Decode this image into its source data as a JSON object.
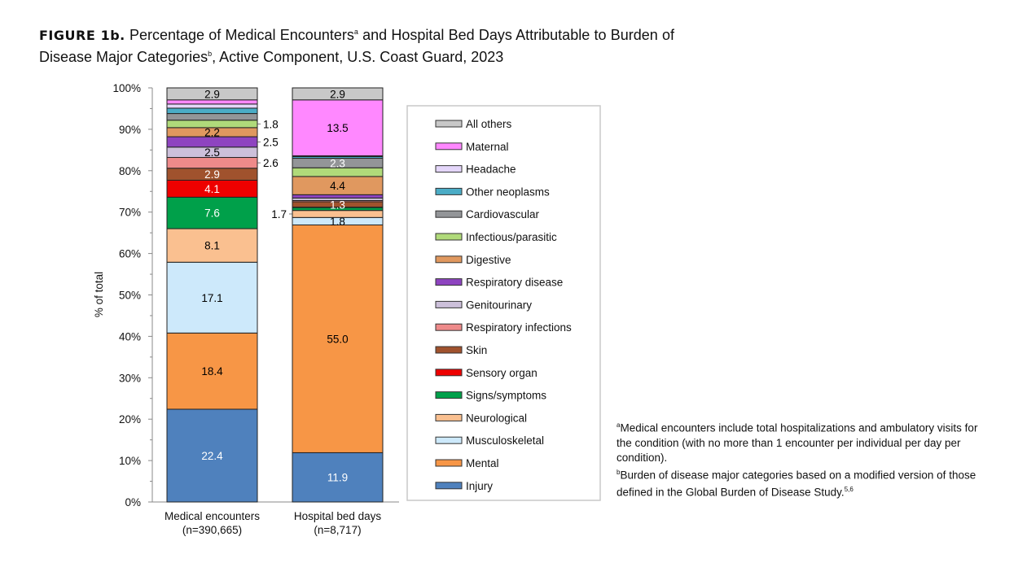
{
  "title": {
    "figure_label": "FIGURE 1b.",
    "text_part1": "Percentage of Medical Encounters",
    "sup_a": "a",
    "text_part2": " and Hospital Bed Days Attributable to Burden of Disease Major Categories",
    "sup_b": "b",
    "text_part3": ", Active Component, U.S. Coast Guard, 2023"
  },
  "chart_data": {
    "type": "bar",
    "stacked": true,
    "percent_stacked": true,
    "ylabel": "% of total",
    "ylim": [
      0,
      100
    ],
    "yticks": [
      "0%",
      "10%",
      "20%",
      "30%",
      "40%",
      "50%",
      "60%",
      "70%",
      "80%",
      "90%",
      "100%"
    ],
    "categories": [
      "Medical encounters\n(n=390,665)",
      "Hospital bed days\n(n=8,717)"
    ],
    "category_lines": [
      [
        "Medical encounters",
        "(n=390,665)"
      ],
      [
        "Hospital bed days",
        "(n=8,717)"
      ]
    ],
    "legend_position": "right",
    "series": [
      {
        "name": "Injury",
        "color": "#4F81BD",
        "label_color": "#ffffff",
        "values": [
          22.4,
          11.9
        ],
        "labels": [
          "22.4",
          "11.9"
        ]
      },
      {
        "name": "Mental",
        "color": "#F79646",
        "label_color": "#000000",
        "values": [
          18.4,
          55.0
        ],
        "labels": [
          "18.4",
          "55.0"
        ]
      },
      {
        "name": "Musculoskeletal",
        "color": "#CDE9FB",
        "label_color": "#000000",
        "values": [
          17.1,
          1.8
        ],
        "labels": [
          "17.1",
          "1.8"
        ]
      },
      {
        "name": "Neurological",
        "color": "#FAC090",
        "label_color": "#000000",
        "values": [
          8.1,
          1.7
        ],
        "labels": [
          "8.1",
          "1.7"
        ]
      },
      {
        "name": "Signs/symptoms",
        "color": "#00A04A",
        "label_color": "#ffffff",
        "values": [
          7.6,
          0.7
        ],
        "labels": [
          "7.6",
          null
        ]
      },
      {
        "name": "Sensory organ",
        "color": "#EE0000",
        "label_color": "#ffffff",
        "values": [
          4.1,
          0.1
        ],
        "labels": [
          "4.1",
          null
        ]
      },
      {
        "name": "Skin",
        "color": "#A0522D",
        "label_color": "#ffffff",
        "values": [
          2.9,
          1.3
        ],
        "labels": [
          "2.9",
          "1.3"
        ]
      },
      {
        "name": "Respiratory infections",
        "color": "#EE8A8A",
        "label_color": "#000000",
        "values": [
          2.6,
          0.3
        ],
        "labels": [
          "2.6",
          null
        ]
      },
      {
        "name": "Genitourinary",
        "color": "#CCC0DA",
        "label_color": "#000000",
        "values": [
          2.5,
          0.6
        ],
        "labels": [
          "2.5",
          null
        ]
      },
      {
        "name": "Respiratory disease",
        "color": "#8E44C0",
        "label_color": "#ffffff",
        "values": [
          2.5,
          0.8
        ],
        "labels": [
          "2.5",
          null
        ]
      },
      {
        "name": "Digestive",
        "color": "#E0985F",
        "label_color": "#000000",
        "values": [
          2.2,
          4.4
        ],
        "labels": [
          "2.2",
          "4.4"
        ]
      },
      {
        "name": "Infectious/parasitic",
        "color": "#B0DA7A",
        "label_color": "#000000",
        "values": [
          1.8,
          2.1
        ],
        "labels": [
          "1.8",
          null
        ]
      },
      {
        "name": "Cardiovascular",
        "color": "#939598",
        "label_color": "#ffffff",
        "values": [
          1.6,
          2.3
        ],
        "labels": [
          null,
          "2.3"
        ]
      },
      {
        "name": "Other neoplasms",
        "color": "#4BACC6",
        "label_color": "#000000",
        "values": [
          1.3,
          0.4
        ],
        "labels": [
          null,
          null
        ]
      },
      {
        "name": "Headache",
        "color": "#E4D6FA",
        "label_color": "#000000",
        "values": [
          1.0,
          0.2
        ],
        "labels": [
          null,
          null
        ]
      },
      {
        "name": "Maternal",
        "color": "#FF88FF",
        "label_color": "#000000",
        "values": [
          1.0,
          13.5
        ],
        "labels": [
          null,
          "13.5"
        ]
      },
      {
        "name": "All others",
        "color": "#C8C8C8",
        "label_color": "#000000",
        "values": [
          2.9,
          2.9
        ],
        "labels": [
          "2.9",
          "2.9"
        ]
      }
    ]
  },
  "footnotes": {
    "a_marker": "a",
    "a_text": "Medical encounters include total hospitalizations and ambulatory visits for the condition (with no more than 1 encounter per individual per day per condition).",
    "b_marker": "b",
    "b_text": "Burden of disease major categories based on a modified version of those defined in the Global Burden of Disease Study.",
    "b_refs": "5,6"
  }
}
